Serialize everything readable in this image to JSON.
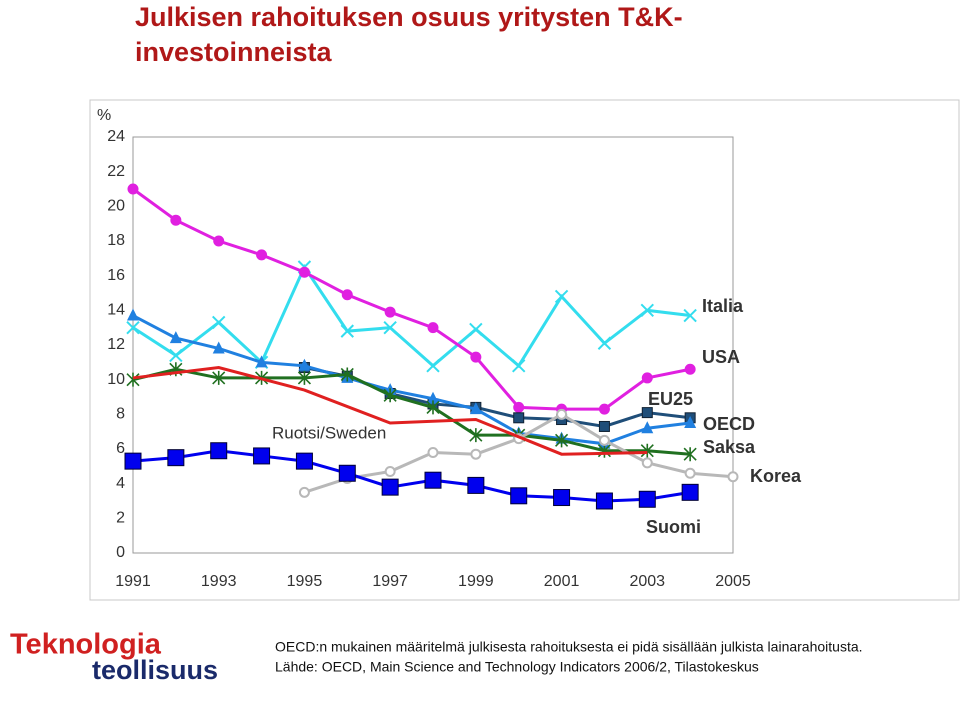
{
  "chart_data": {
    "type": "line",
    "title": "Julkisen rahoituksen osuus yritysten T&K-investoinneista",
    "y_label": "%",
    "xlim": [
      1991,
      2005
    ],
    "xticks": [
      1991,
      1993,
      1995,
      1997,
      1999,
      2001,
      2003,
      2005
    ],
    "ylim": [
      0,
      24
    ],
    "yticks": [
      0,
      2,
      4,
      6,
      8,
      10,
      12,
      14,
      16,
      18,
      20,
      22,
      24
    ],
    "grid": false,
    "series": [
      {
        "name": "Italia",
        "color": "#33ddee",
        "marker": "x",
        "x": [
          1991,
          1992,
          1993,
          1994,
          1995,
          1996,
          1997,
          1998,
          1999,
          2000,
          2001,
          2002,
          2003,
          2004
        ],
        "values": [
          13.0,
          11.4,
          13.3,
          11.0,
          16.5,
          12.8,
          13.0,
          10.8,
          12.9,
          10.8,
          14.8,
          12.1,
          14.0,
          13.7
        ]
      },
      {
        "name": "USA",
        "color": "#e020e0",
        "marker": "circle",
        "x": [
          1991,
          1992,
          1993,
          1994,
          1995,
          1996,
          1997,
          1998,
          1999,
          2000,
          2001,
          2002,
          2003,
          2004
        ],
        "values": [
          21.0,
          19.2,
          18.0,
          17.2,
          16.2,
          14.9,
          13.9,
          13.0,
          11.3,
          8.4,
          8.3,
          8.3,
          10.1,
          10.6
        ]
      },
      {
        "name": "EU25",
        "color": "#1f4e79",
        "marker": "square",
        "x": [
          1995,
          1996,
          1997,
          1998,
          1999,
          2000,
          2001,
          2002,
          2003,
          2004
        ],
        "values": [
          10.7,
          10.2,
          9.2,
          8.6,
          8.4,
          7.8,
          7.7,
          7.3,
          8.1,
          7.8
        ]
      },
      {
        "name": "OECD",
        "color": "#2080e0",
        "marker": "triangle",
        "x": [
          1991,
          1992,
          1993,
          1994,
          1995,
          1996,
          1997,
          1998,
          1999,
          2000,
          2001,
          2002,
          2003,
          2004
        ],
        "values": [
          13.7,
          12.4,
          11.8,
          11.0,
          10.8,
          10.1,
          9.4,
          8.9,
          8.3,
          6.9,
          6.6,
          6.3,
          7.2,
          7.5
        ]
      },
      {
        "name": "Saksa",
        "color": "#207020",
        "marker": "star",
        "x": [
          1991,
          1992,
          1993,
          1994,
          1995,
          1996,
          1997,
          1998,
          1999,
          2000,
          2001,
          2002,
          2003,
          2004
        ],
        "values": [
          10.0,
          10.6,
          10.1,
          10.1,
          10.1,
          10.3,
          9.1,
          8.4,
          6.8,
          6.8,
          6.5,
          5.9,
          5.9,
          5.7
        ]
      },
      {
        "name": "Korea",
        "color": "#b8b8b8",
        "marker": "circle",
        "x": [
          1995,
          1996,
          1997,
          1998,
          1999,
          2000,
          2001,
          2002,
          2003,
          2004,
          2005
        ],
        "values": [
          3.5,
          4.3,
          4.7,
          5.8,
          5.7,
          6.6,
          8.0,
          6.5,
          5.2,
          4.6,
          4.4
        ]
      },
      {
        "name": "Suomi",
        "color": "#0000ee",
        "marker": "bigsquare",
        "x": [
          1991,
          1992,
          1993,
          1994,
          1995,
          1996,
          1997,
          1998,
          1999,
          2000,
          2001,
          2002,
          2003,
          2004
        ],
        "values": [
          5.3,
          5.5,
          5.9,
          5.6,
          5.3,
          4.6,
          3.8,
          4.2,
          3.9,
          3.3,
          3.2,
          3.0,
          3.1,
          3.5
        ]
      },
      {
        "name": "Ruotsi/Sweden",
        "color": "#e02020",
        "marker": "none",
        "x": [
          1991,
          1993,
          1995,
          1997,
          1999,
          2001,
          2003
        ],
        "values": [
          10.1,
          10.7,
          9.4,
          7.5,
          7.7,
          5.7,
          5.8
        ]
      }
    ]
  },
  "footer": {
    "note": "OECD:n mukainen määritelmä julkisesta rahoituksesta ei pidä sisällään julkista lainarahoitusta.",
    "source": "Lähde: OECD, Main Science and Technology Indicators 2006/2, Tilastokeskus"
  },
  "logo": {
    "line1": "Teknologia",
    "line2": "teollisuus"
  }
}
